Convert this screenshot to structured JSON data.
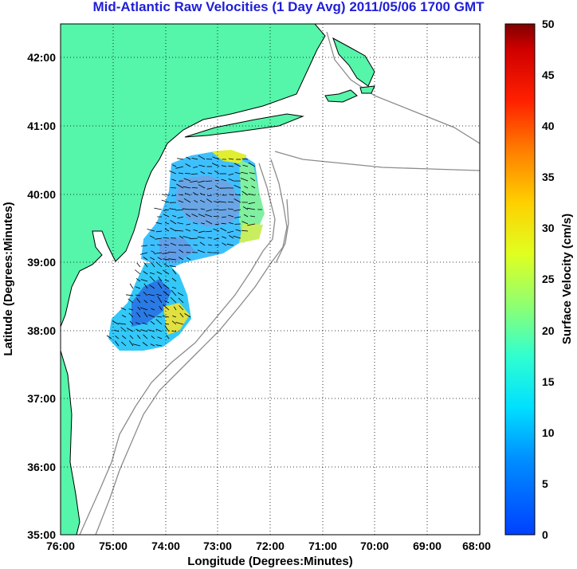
{
  "title": "Mid-Atlantic Raw Velocities (1 Day Avg) 2011/05/06 1700 GMT",
  "map": {
    "x_label": "Longitude (Degrees:Minutes)",
    "y_label": "Latitude (Degrees:Minutes)",
    "lon_ticks": [
      "76:00",
      "75:00",
      "74:00",
      "73:00",
      "72:00",
      "71:00",
      "70:00",
      "69:00",
      "68:00"
    ],
    "lat_ticks": [
      "42:00",
      "41:00",
      "40:00",
      "39:00",
      "38:00",
      "37:00",
      "36:00",
      "35:00"
    ],
    "lon_range": [
      -76,
      -68
    ],
    "lat_range": [
      35,
      42.5
    ],
    "land_color": "#55f5aa",
    "coast_color": "#000000",
    "bathymetry_color": "#8c8c8c",
    "grid": "dotted"
  },
  "colorbar": {
    "label": "Surface Velocity (cm/s)",
    "ticks": [
      "50",
      "45",
      "40",
      "35",
      "30",
      "25",
      "20",
      "15",
      "10",
      "5",
      "0"
    ],
    "range": [
      0,
      50
    ],
    "colormap": "jet"
  }
}
